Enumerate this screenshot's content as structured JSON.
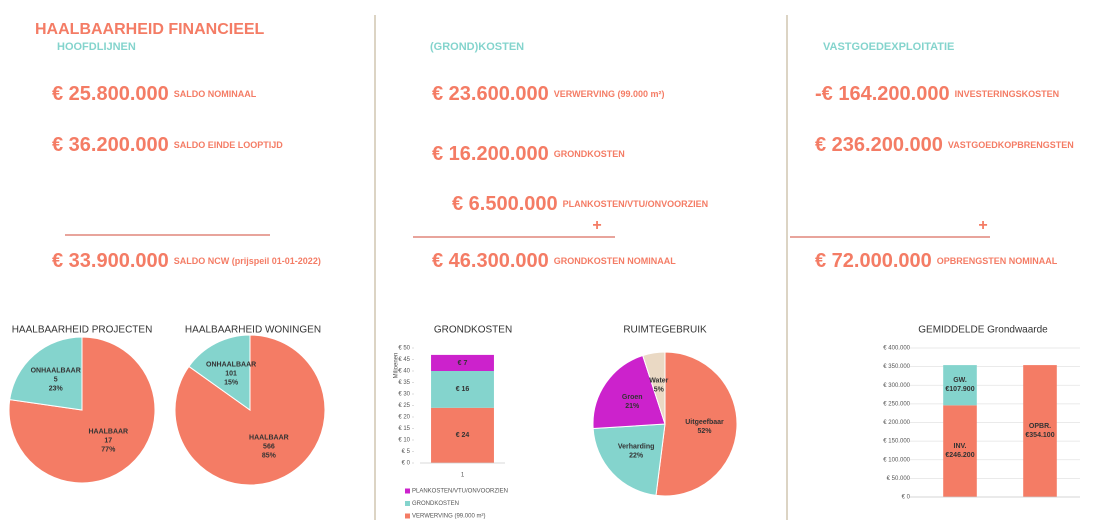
{
  "title": "HAALBAARHEID FINANCIEEL",
  "sections": [
    {
      "heading": "HOOFDLIJNEN",
      "rows": [
        {
          "amount": "€ 25.800.000",
          "label": "SALDO NOMINAAL"
        },
        {
          "amount": "€ 36.200.000",
          "label": "SALDO EINDE LOOPTIJD"
        }
      ],
      "total": {
        "amount": "€ 33.900.000",
        "label": "SALDO NCW (prijspeil 01-01-2022)"
      }
    },
    {
      "heading": "(GROND)KOSTEN",
      "rows": [
        {
          "amount": "€ 23.600.000",
          "label": "VERWERVING (99.000 m²)"
        },
        {
          "amount": "€ 16.200.000",
          "label": "GRONDKOSTEN"
        },
        {
          "amount": "€ 6.500.000",
          "label": "PLANKOSTEN/VTU/ONVOORZIEN"
        }
      ],
      "operator": "+",
      "total": {
        "amount": "€ 46.300.000",
        "label": "GRONDKOSTEN NOMINAAL"
      }
    },
    {
      "heading": "VASTGOEDEXPLOITATIE",
      "rows": [
        {
          "amount": "-€ 164.200.000",
          "label": "INVESTERINGSKOSTEN"
        },
        {
          "amount": "€ 236.200.000",
          "label": "VASTGOEDKOPBRENGSTEN"
        }
      ],
      "operator": "+",
      "total": {
        "amount": "€ 72.000.000",
        "label": "OPBRENGSTEN NOMINAAL"
      }
    }
  ],
  "chart_data": [
    {
      "type": "pie",
      "title": "HAALBAARHEID PROJECTEN",
      "categories": [
        "HAALBAAR",
        "ONHAALBAAR"
      ],
      "values": [
        17,
        5
      ],
      "shares": [
        "77%",
        "23%"
      ],
      "colors": [
        "#f47c65",
        "#84d4cd"
      ]
    },
    {
      "type": "pie",
      "title": "HAALBAARHEID WONINGEN",
      "categories": [
        "HAALBAAR",
        "ONHAALBAAR"
      ],
      "values": [
        566,
        101
      ],
      "shares": [
        "85%",
        "15%"
      ],
      "colors": [
        "#f47c65",
        "#84d4cd"
      ]
    },
    {
      "type": "bar",
      "title": "GRONDKOSTEN",
      "y_label": "Miljoenen",
      "categories": [
        "1"
      ],
      "series": [
        {
          "name": "VERWERVING (99.000 m²)",
          "color": "#f47c65",
          "values": [
            24
          ],
          "value_labels": [
            "€ 24"
          ]
        },
        {
          "name": "GRONDKOSTEN",
          "color": "#84d4cd",
          "values": [
            16
          ],
          "value_labels": [
            "€ 16"
          ]
        },
        {
          "name": "PLANKOSTEN/VTU/ONVOORZIEN",
          "color": "#cc22cc",
          "values": [
            7
          ],
          "value_labels": [
            "€ 7"
          ]
        }
      ],
      "ylim": [
        0,
        50
      ],
      "yticks": [
        {
          "value": 0,
          "label": "€ 0"
        },
        {
          "value": 5,
          "label": "€ 5"
        },
        {
          "value": 10,
          "label": "€ 10"
        },
        {
          "value": 15,
          "label": "€ 15"
        },
        {
          "value": 20,
          "label": "€ 20"
        },
        {
          "value": 25,
          "label": "€ 25"
        },
        {
          "value": 30,
          "label": "€ 30"
        },
        {
          "value": 35,
          "label": "€ 35"
        },
        {
          "value": 40,
          "label": "€ 40"
        },
        {
          "value": 45,
          "label": "€ 45"
        },
        {
          "value": 50,
          "label": "€ 50"
        }
      ],
      "legend": true,
      "grid": false
    },
    {
      "type": "pie",
      "title": "RUIMTEGEBRUIK",
      "categories": [
        "Uitgeefbaar",
        "Verharding",
        "Groen",
        "Water"
      ],
      "values": [
        52,
        22,
        21,
        5
      ],
      "value_labels": [
        "52%",
        "22%",
        "21%",
        "5%"
      ],
      "colors": [
        "#f47c65",
        "#84d4cd",
        "#cc22cc",
        "#ead9c4"
      ]
    },
    {
      "type": "bar",
      "title": "GEMIDDELDE Grondwaarde",
      "categories": [
        null,
        null
      ],
      "series": [
        {
          "name": "INV.",
          "color": "#f47c65",
          "values": [
            246200,
            null
          ],
          "value_labels": [
            "€246.200",
            null
          ]
        },
        {
          "name": "GW.",
          "color": "#84d4cd",
          "values": [
            107900,
            null
          ],
          "value_labels": [
            "€107.900",
            null
          ]
        },
        {
          "name": "OPBR.",
          "color": "#f47c65",
          "values": [
            null,
            354100
          ],
          "value_labels": [
            null,
            "€354.100"
          ]
        }
      ],
      "ylim": [
        0,
        400000
      ],
      "yticks": [
        {
          "value": 0,
          "label": "€ 0"
        },
        {
          "value": 50000,
          "label": "€ 50.000"
        },
        {
          "value": 100000,
          "label": "€ 100.000"
        },
        {
          "value": 150000,
          "label": "€ 150.000"
        },
        {
          "value": 200000,
          "label": "€ 200.000"
        },
        {
          "value": 250000,
          "label": "€ 250.000"
        },
        {
          "value": 300000,
          "label": "€ 300.000"
        },
        {
          "value": 350000,
          "label": "€ 350.000"
        },
        {
          "value": 400000,
          "label": "€ 400.000"
        }
      ],
      "grid": true
    }
  ]
}
